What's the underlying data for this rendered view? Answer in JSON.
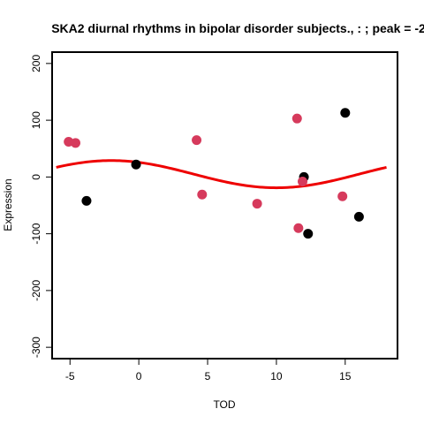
{
  "chart_data": {
    "type": "scatter",
    "title": "SKA2 diurnal rhythms in bipolar disorder subjects., : ; peak = -2",
    "xlabel": "TOD",
    "ylabel": "Expression",
    "xlim": [
      -6.3,
      18.8
    ],
    "ylim": [
      -320,
      220
    ],
    "xticks": [
      -5,
      0,
      5,
      10,
      15
    ],
    "xtick_labels": [
      "-5",
      "0",
      "5",
      "10",
      "15"
    ],
    "yticks": [
      -300,
      -200,
      -100,
      0,
      100,
      200
    ],
    "ytick_labels": [
      "-300",
      "-200",
      "-100",
      "0",
      "100",
      "200"
    ],
    "grid": false,
    "colors": {
      "black": "#000000",
      "red": "#d63a5c",
      "curve": "#ee0000"
    },
    "series": [
      {
        "color": "black",
        "points": [
          {
            "x": -3.8,
            "y": -42
          },
          {
            "x": -0.2,
            "y": 22
          },
          {
            "x": 12.0,
            "y": 0
          },
          {
            "x": 12.3,
            "y": -100
          },
          {
            "x": 15.0,
            "y": 113
          },
          {
            "x": 16.0,
            "y": -70
          }
        ]
      },
      {
        "color": "red",
        "points": [
          {
            "x": -5.1,
            "y": 62
          },
          {
            "x": -4.6,
            "y": 60
          },
          {
            "x": 4.2,
            "y": 65
          },
          {
            "x": 4.6,
            "y": -31
          },
          {
            "x": 8.6,
            "y": -47
          },
          {
            "x": 11.5,
            "y": 103
          },
          {
            "x": 11.6,
            "y": -90
          },
          {
            "x": 11.9,
            "y": -8
          },
          {
            "x": 14.8,
            "y": -34
          }
        ]
      }
    ],
    "fit_curve": {
      "type": "cosinor",
      "mesor": 5,
      "amplitude": 24,
      "period": 24,
      "peak": -2,
      "x_range": [
        -6,
        18
      ]
    }
  }
}
